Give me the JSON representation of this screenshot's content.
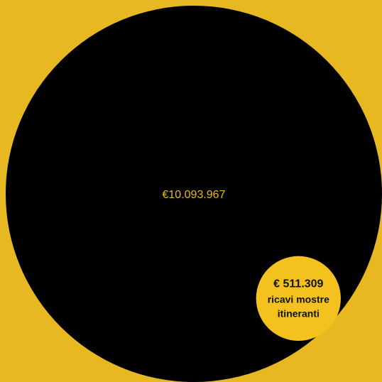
{
  "chart_data": {
    "type": "bubble",
    "title": "",
    "bubbles": [
      {
        "value": 10093967,
        "label": "€10.093.967",
        "color": "#000000",
        "text_color": "#e8b823"
      },
      {
        "value": 511309,
        "label": "€ 511.309",
        "sublabel_lines": [
          "ricavi mostre",
          "itineranti"
        ],
        "color": "#f4c21e",
        "text_color": "#111111"
      }
    ]
  },
  "colors": {
    "background": "#e8b823",
    "accent": "#f4c21e"
  }
}
